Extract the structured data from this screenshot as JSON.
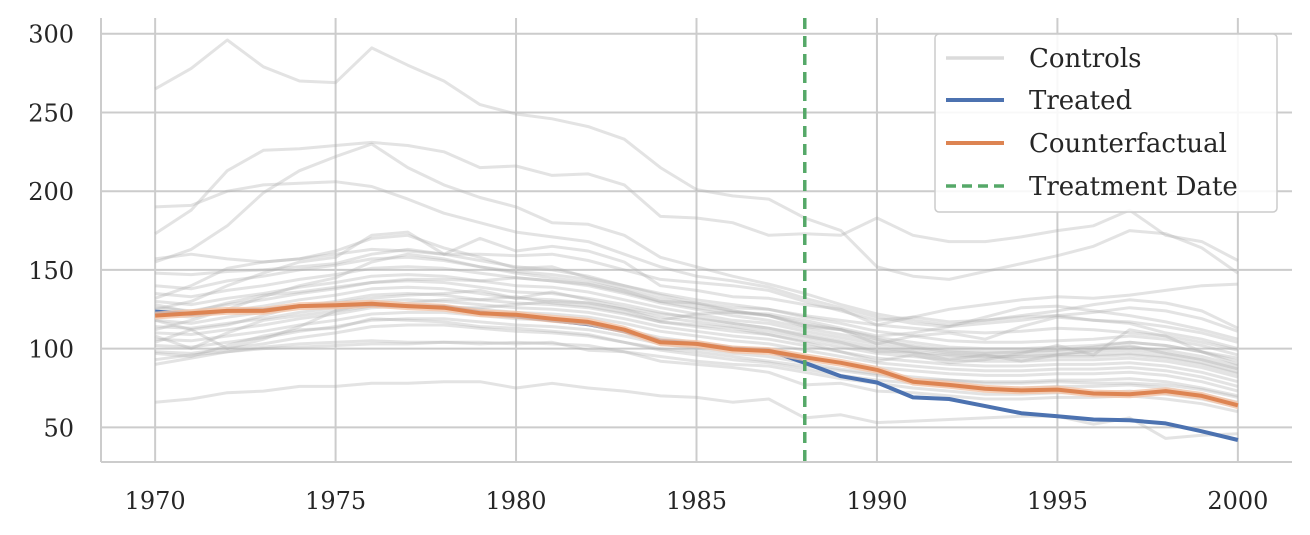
{
  "chart_data": {
    "type": "line",
    "title": "",
    "xlabel": "",
    "ylabel": "",
    "xlim": [
      1968.5,
      2001.5
    ],
    "ylim": [
      28,
      310
    ],
    "x_ticks": [
      1970,
      1975,
      1980,
      1985,
      1990,
      1995,
      2000
    ],
    "x_tick_labels": [
      "1970",
      "1975",
      "1980",
      "1985",
      "1990",
      "1995",
      "2000"
    ],
    "y_ticks": [
      50,
      100,
      150,
      200,
      250,
      300
    ],
    "y_tick_labels": [
      "50",
      "100",
      "150",
      "200",
      "250",
      "300"
    ],
    "grid": true,
    "legend_position": "top-right",
    "x": [
      1970,
      1971,
      1972,
      1973,
      1974,
      1975,
      1976,
      1977,
      1978,
      1979,
      1980,
      1981,
      1982,
      1983,
      1984,
      1985,
      1986,
      1987,
      1988,
      1989,
      1990,
      1991,
      1992,
      1993,
      1994,
      1995,
      1996,
      1997,
      1998,
      1999,
      2000
    ],
    "treatment_date": 1988,
    "legend": {
      "controls": "Controls",
      "treated": "Treated",
      "counterfactual": "Counterfactual",
      "treatment_date": "Treatment Date"
    },
    "colors": {
      "controls": "#b0b0b0",
      "treated": "#4c72b0",
      "counterfactual": "#dd8452",
      "counterfactual_band": "#f2c3a6",
      "treatment_date": "#55a868",
      "grid": "#cccccc",
      "spine": "#cccccc",
      "text": "#262626"
    },
    "series": [
      {
        "name": "Treated",
        "values": [
          123.5,
          122,
          124,
          124.5,
          127,
          127.5,
          128,
          127,
          126.5,
          123,
          120.5,
          118,
          115.5,
          111,
          105,
          103,
          100,
          99,
          91,
          82.5,
          78.5,
          69,
          68,
          63.5,
          59,
          57,
          55,
          54.5,
          52.5,
          47.5,
          42
        ]
      },
      {
        "name": "Counterfactual",
        "values": [
          121,
          122.5,
          124,
          124,
          127,
          127.5,
          128.5,
          127,
          126,
          122.5,
          121.5,
          119,
          117,
          112,
          104,
          103,
          99.5,
          98.5,
          94.5,
          91,
          86.5,
          79,
          77,
          74.5,
          73.5,
          74,
          71.5,
          71,
          73,
          70,
          64
        ],
        "band": 2.5
      }
    ],
    "controls": [
      [
        265,
        278,
        296,
        279,
        270,
        269,
        291,
        280,
        270,
        255,
        249,
        246,
        241,
        233,
        215,
        201,
        197,
        195,
        183,
        175,
        152,
        146,
        144,
        149,
        154,
        159,
        165,
        175,
        173,
        164,
        148
      ],
      [
        190,
        191,
        200,
        204,
        205,
        206,
        203,
        195,
        186,
        180,
        174,
        171,
        168,
        160,
        152,
        146,
        143,
        139,
        132,
        126,
        120,
        116,
        114,
        116,
        118,
        121,
        123,
        126,
        124,
        119,
        111
      ],
      [
        173,
        188,
        213,
        226,
        227,
        229,
        231,
        229,
        225,
        215,
        216,
        210,
        211,
        204,
        184,
        183,
        180,
        172,
        173,
        172,
        183,
        172,
        168,
        168,
        171,
        175,
        178,
        188,
        172,
        168,
        156
      ],
      [
        155,
        163,
        178,
        199,
        213,
        222,
        230,
        215,
        204,
        196,
        190,
        180,
        179,
        172,
        158,
        152,
        146,
        141,
        135,
        128,
        122,
        118,
        115,
        118,
        121,
        124,
        128,
        131,
        129,
        124,
        113
      ],
      [
        157,
        160,
        157,
        155,
        157,
        162,
        170,
        172,
        164,
        158,
        151,
        152,
        145,
        140,
        134,
        129,
        124,
        121,
        115,
        112,
        106,
        101,
        98,
        97,
        98,
        99,
        101,
        104,
        102,
        98,
        90
      ],
      [
        148,
        147,
        149,
        150,
        152,
        154,
        160,
        163,
        160,
        156,
        152,
        150,
        146,
        140,
        135,
        131,
        128,
        125,
        120,
        116,
        111,
        108,
        105,
        104,
        104,
        105,
        106,
        108,
        106,
        102,
        96
      ],
      [
        140,
        138,
        143,
        146,
        150,
        153,
        157,
        158,
        156,
        152,
        149,
        147,
        144,
        138,
        132,
        128,
        124,
        121,
        116,
        112,
        107,
        104,
        101,
        100,
        100,
        101,
        102,
        104,
        102,
        98,
        92
      ],
      [
        135,
        133,
        137,
        140,
        144,
        147,
        151,
        152,
        151,
        148,
        145,
        143,
        140,
        135,
        129,
        125,
        121,
        118,
        113,
        109,
        105,
        102,
        99,
        98,
        98,
        99,
        100,
        101,
        99,
        95,
        89
      ],
      [
        130,
        128,
        132,
        135,
        139,
        142,
        146,
        147,
        146,
        143,
        140,
        139,
        136,
        131,
        126,
        122,
        118,
        116,
        111,
        107,
        103,
        100,
        97,
        96,
        96,
        97,
        98,
        99,
        97,
        93,
        87
      ],
      [
        126,
        124,
        128,
        131,
        135,
        138,
        142,
        143,
        142,
        139,
        136,
        135,
        132,
        128,
        123,
        119,
        116,
        113,
        109,
        105,
        101,
        98,
        96,
        95,
        95,
        96,
        96,
        97,
        95,
        91,
        85
      ],
      [
        122,
        120,
        124,
        127,
        131,
        134,
        138,
        139,
        138,
        135,
        132,
        131,
        129,
        125,
        120,
        117,
        114,
        111,
        107,
        103,
        99,
        97,
        95,
        94,
        94,
        95,
        95,
        96,
        94,
        90,
        84
      ],
      [
        118,
        116,
        120,
        123,
        127,
        130,
        134,
        135,
        134,
        131,
        129,
        128,
        126,
        122,
        117,
        114,
        111,
        109,
        105,
        101,
        97,
        95,
        93,
        92,
        92,
        93,
        93,
        94,
        92,
        88,
        82
      ],
      [
        114,
        113,
        116,
        119,
        123,
        126,
        130,
        131,
        130,
        128,
        126,
        125,
        123,
        119,
        114,
        111,
        108,
        106,
        102,
        98,
        94,
        92,
        90,
        89,
        89,
        90,
        90,
        91,
        89,
        85,
        79
      ],
      [
        110,
        109,
        112,
        115,
        119,
        122,
        126,
        127,
        127,
        125,
        123,
        122,
        120,
        116,
        111,
        108,
        105,
        103,
        99,
        95,
        91,
        89,
        87,
        86,
        86,
        87,
        87,
        88,
        86,
        82,
        76
      ],
      [
        106,
        105,
        108,
        111,
        115,
        118,
        122,
        123,
        123,
        121,
        119,
        118,
        116,
        112,
        107,
        104,
        101,
        99,
        95,
        91,
        88,
        86,
        84,
        83,
        83,
        84,
        84,
        85,
        83,
        79,
        73
      ],
      [
        102,
        101,
        104,
        107,
        111,
        114,
        118,
        119,
        119,
        117,
        115,
        114,
        112,
        108,
        103,
        100,
        97,
        95,
        91,
        87,
        84,
        82,
        80,
        79,
        79,
        80,
        80,
        81,
        79,
        75,
        70
      ],
      [
        98,
        97,
        100,
        103,
        107,
        110,
        114,
        115,
        115,
        113,
        111,
        110,
        108,
        104,
        99,
        96,
        93,
        91,
        87,
        83,
        80,
        78,
        76,
        75,
        75,
        76,
        76,
        77,
        75,
        71,
        66
      ],
      [
        93,
        96,
        98,
        101,
        103,
        104,
        105,
        104,
        104,
        103,
        104,
        103,
        102,
        98,
        95,
        92,
        90,
        89,
        85,
        81,
        78,
        75,
        73,
        71,
        71,
        72,
        72,
        73,
        71,
        68,
        63
      ],
      [
        90,
        94,
        98,
        100,
        101,
        102,
        103,
        103,
        104,
        104,
        103,
        104,
        99,
        98,
        92,
        90,
        88,
        85,
        77,
        78,
        73,
        72,
        70,
        68,
        68,
        69,
        69,
        70,
        68,
        65,
        60
      ],
      [
        66,
        68,
        72,
        73,
        76,
        76,
        78,
        78,
        79,
        79,
        75,
        78,
        75,
        73,
        70,
        69,
        66,
        68,
        56,
        58,
        53,
        54,
        55,
        56,
        57,
        57,
        52,
        56,
        43,
        45,
        46
      ],
      [
        125,
        130,
        140,
        148,
        155,
        158,
        172,
        174,
        160,
        170,
        162,
        165,
        162,
        155,
        140,
        137,
        133,
        132,
        128,
        125,
        115,
        120,
        125,
        128,
        131,
        133,
        132,
        134,
        137,
        140,
        141
      ],
      [
        112,
        118,
        125,
        133,
        140,
        145,
        155,
        160,
        157,
        152,
        148,
        145,
        142,
        137,
        130,
        126,
        123,
        122,
        118,
        113,
        108,
        110,
        114,
        120,
        126,
        127,
        124,
        121,
        117,
        112,
        106
      ],
      [
        104,
        112,
        100,
        106,
        114,
        124,
        129,
        127,
        126,
        126,
        128,
        130,
        129,
        125,
        118,
        122,
        123,
        121,
        114,
        112,
        103,
        108,
        110,
        106,
        114,
        120,
        118,
        116,
        110,
        106,
        100
      ],
      [
        108,
        100,
        110,
        118,
        121,
        124,
        127,
        129,
        131,
        131,
        133,
        129,
        127,
        123,
        117,
        115,
        113,
        109,
        104,
        98,
        92,
        96,
        91,
        93,
        97,
        102,
        96,
        112,
        108,
        98,
        94
      ],
      [
        118,
        112,
        115,
        121,
        127,
        129,
        132,
        134,
        135,
        137,
        132,
        136,
        131,
        126,
        122,
        120,
        116,
        113,
        108,
        104,
        98,
        98,
        93,
        96,
        92,
        96,
        99,
        102,
        97,
        93,
        87
      ],
      [
        128,
        123,
        129,
        134,
        136,
        139,
        142,
        144,
        144,
        143,
        145,
        143,
        141,
        136,
        130,
        129,
        126,
        125,
        121,
        118,
        115,
        113,
        111,
        110,
        111,
        113,
        112,
        110,
        108,
        104,
        99
      ],
      [
        132,
        140,
        151,
        155,
        157,
        160,
        163,
        162,
        160,
        160,
        159,
        160,
        156,
        150,
        144,
        142,
        140,
        137,
        130,
        124,
        118,
        120,
        117,
        118,
        120,
        121,
        118,
        117,
        114,
        110,
        104
      ],
      [
        97,
        95,
        102,
        108,
        112,
        113,
        119,
        118,
        117,
        114,
        113,
        111,
        109,
        104,
        100,
        98,
        95,
        92,
        89,
        86,
        83,
        80,
        80,
        78,
        78,
        79,
        78,
        78,
        77,
        74,
        69
      ]
    ]
  }
}
